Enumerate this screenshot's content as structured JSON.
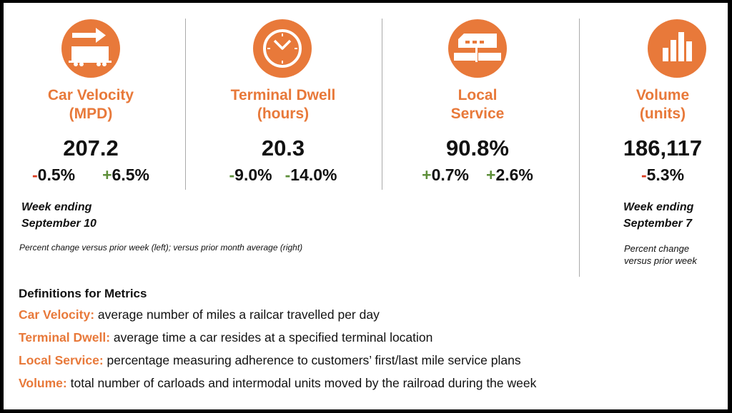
{
  "colors": {
    "accent": "#E8793A",
    "negative": "#d93a1e",
    "positive": "#5e8f3a"
  },
  "metrics": [
    {
      "icon": "railcar-arrow-icon",
      "title1": "Car Velocity",
      "title2": "(MPD)",
      "value": "207.2",
      "changes": [
        {
          "sign": "-",
          "sign_color": "negative",
          "rest": "0.5%"
        },
        {
          "sign": "+",
          "sign_color": "positive",
          "rest": "6.5%"
        }
      ]
    },
    {
      "icon": "clock-icon",
      "title1": "Terminal Dwell",
      "title2": "(hours)",
      "value": "20.3",
      "changes": [
        {
          "sign": "-",
          "sign_color": "positive",
          "rest": "9.0%"
        },
        {
          "sign": "-",
          "sign_color": "positive",
          "rest": "14.0%"
        }
      ]
    },
    {
      "icon": "terminal-building-icon",
      "title1": "Local",
      "title2": "Service",
      "value": "90.8%",
      "changes": [
        {
          "sign": "+",
          "sign_color": "positive",
          "rest": "0.7%"
        },
        {
          "sign": "+",
          "sign_color": "positive",
          "rest": "2.6%"
        }
      ]
    },
    {
      "icon": "bar-chart-icon",
      "title1": "Volume",
      "title2": "(units)",
      "value": "186,117",
      "changes": [
        {
          "sign": "-",
          "sign_color": "negative",
          "rest": "5.3%"
        }
      ]
    }
  ],
  "left_footer": {
    "week1": "Week ending",
    "week2": "September 10",
    "note": "Percent change versus prior week (left); versus prior month average (right)"
  },
  "right_footer": {
    "week1": "Week ending",
    "week2": "September 7",
    "note1": "Percent change",
    "note2": "versus prior week"
  },
  "definitions": {
    "heading": "Definitions for Metrics",
    "items": [
      {
        "term": "Car Velocity:",
        "text": " average number of miles a railcar travelled per day"
      },
      {
        "term": "Terminal Dwell:",
        "text": " average time a car resides at a specified terminal location"
      },
      {
        "term": "Local Service:",
        "text": " percentage measuring adherence to customers’ first/last mile service plans"
      },
      {
        "term": "Volume:",
        "text": " total number of carloads and intermodal units moved by the railroad during the week"
      }
    ]
  }
}
